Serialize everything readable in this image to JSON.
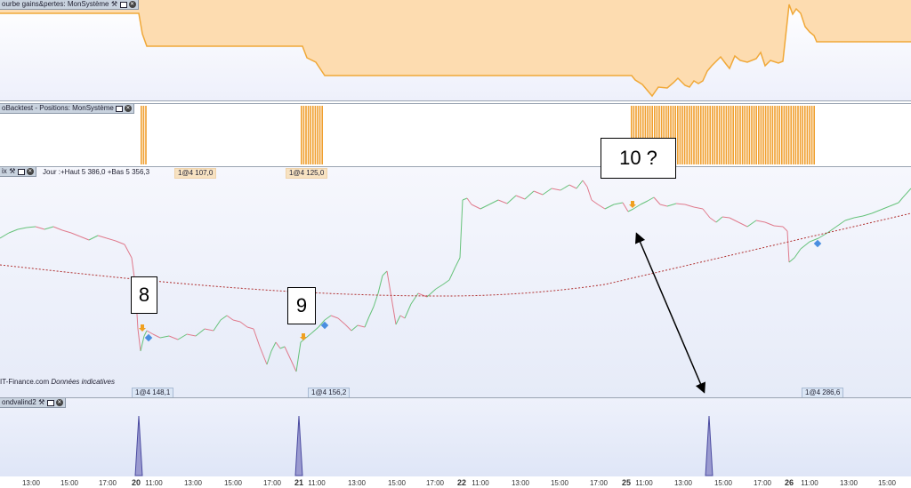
{
  "panels": {
    "equity": {
      "title": "ourbe gains&pertes: MonSystème",
      "fill_color": "#fddcb0",
      "line_color": "#f0a838"
    },
    "positions": {
      "title": "oBacktest - Positions: MonSystème",
      "bar_color": "#f0a030"
    },
    "price": {
      "title": "ix",
      "info": "Jour :+Haut 5 386,0 +Bas 5 356,3",
      "badges_top": [
        "1@4 107,0",
        "1@4 125,0"
      ],
      "badges_bottom": [
        "1@4 148,1",
        "1@4 156,2",
        "1@4 286,6"
      ],
      "source": "IT-Finance.com",
      "source_note": "Données indicatives",
      "up_color": "#66c27a",
      "down_color": "#e07a8c",
      "ma_color": "#b03030"
    },
    "indicator": {
      "title": "ondvalind2",
      "spike_color": "#4a4aa0"
    }
  },
  "annotations": [
    "8",
    "9",
    "10 ?"
  ],
  "axis": {
    "ticks": [
      {
        "label": "13:00",
        "day": false
      },
      {
        "label": "15:00",
        "day": false
      },
      {
        "label": "17:00",
        "day": false
      },
      {
        "label": "20",
        "day": true
      },
      {
        "label": "11:00",
        "day": false
      },
      {
        "label": "13:00",
        "day": false
      },
      {
        "label": "15:00",
        "day": false
      },
      {
        "label": "17:00",
        "day": false
      },
      {
        "label": "21",
        "day": true
      },
      {
        "label": "11:00",
        "day": false
      },
      {
        "label": "13:00",
        "day": false
      },
      {
        "label": "15:00",
        "day": false
      },
      {
        "label": "17:00",
        "day": false
      },
      {
        "label": "22",
        "day": true
      },
      {
        "label": "11:00",
        "day": false
      },
      {
        "label": "13:00",
        "day": false
      },
      {
        "label": "15:00",
        "day": false
      },
      {
        "label": "17:00",
        "day": false
      },
      {
        "label": "25",
        "day": true
      },
      {
        "label": "11:00",
        "day": false
      },
      {
        "label": "13:00",
        "day": false
      },
      {
        "label": "15:00",
        "day": false
      },
      {
        "label": "17:00",
        "day": false
      },
      {
        "label": "26",
        "day": true
      },
      {
        "label": "11:00",
        "day": false
      },
      {
        "label": "13:00",
        "day": false
      },
      {
        "label": "15:00",
        "day": false
      }
    ]
  }
}
